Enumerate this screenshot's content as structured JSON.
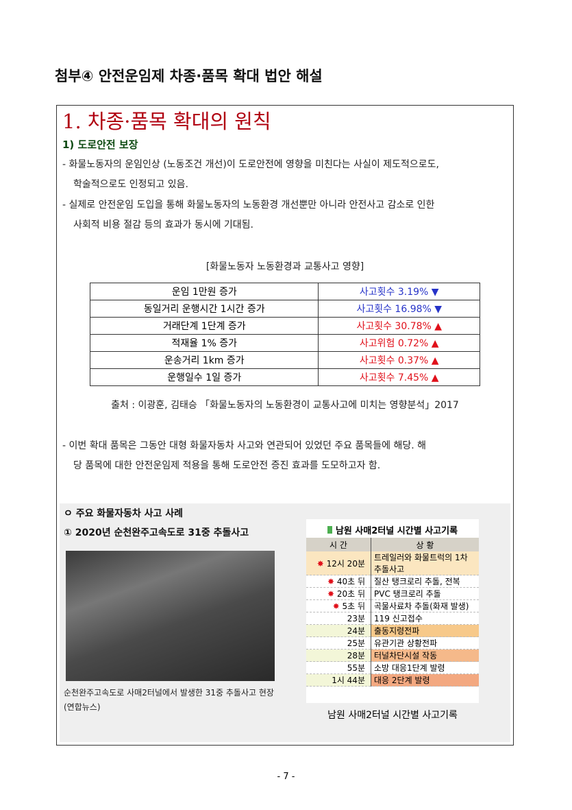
{
  "doc_title": "첨부④ 안전운임제 차종·품목 확대 법안 해설",
  "section_title": "1. 차종·품목 확대의 원칙",
  "subsection_title": "1) 도로안전 보장",
  "paragraphs": [
    {
      "line1": "- 화물노동자의 운임인상 (노동조건 개선)이 도로안전에 영향을 미친다는 사실이 제도적으로도,",
      "line2": "학술적으로도 인정되고 있음."
    },
    {
      "line1": "- 실제로 안전운임 도입을 통해 화물노동자의 노동환경 개선뿐만 아니라 안전사고 감소로 인한",
      "line2": "사회적 비용 절감 등의 효과가 동시에 기대됨."
    },
    {
      "line1": "- 이번 확대 품목은 그동안 대형 화물자동차 사고와 연관되어 있었던 주요 품목들에 해당. 해",
      "line2": "당 품목에 대한 안전운임제 적용을 통해 도로안전 증진 효과를 도모하고자 함."
    }
  ],
  "table_caption": "[화물노동자 노동환경과 교통사고 영향]",
  "effects": [
    {
      "factor": "운임 1만원 증가",
      "effect": "사고횟수 3.19% ▼",
      "direction": "down"
    },
    {
      "factor": "동일거리 운행시간 1시간 증가",
      "effect": "사고횟수 16.98% ▼",
      "direction": "down"
    },
    {
      "factor": "거래단계 1단계 증가",
      "effect": "사고횟수 30.78% ▲",
      "direction": "up"
    },
    {
      "factor": "적재율 1% 증가",
      "effect": "사고위험 0.72% ▲",
      "direction": "up"
    },
    {
      "factor": "운송거리 1km 증가",
      "effect": "사고횟수 0.37% ▲",
      "direction": "up"
    },
    {
      "factor": "운행일수 1일 증가",
      "effect": "사고횟수 7.45% ▲",
      "direction": "up"
    }
  ],
  "colors": {
    "down": "#2633c8",
    "up": "#e0101a",
    "title_red": "#b00010",
    "sub_green": "#0d4a12"
  },
  "source": "출처 : 이광훈, 김태승 「화물노동자의 노동환경이 교통사고에 미치는 영향분석」2017",
  "cases": {
    "heading": "ㅇ 주요 화물자동차 사고 사례",
    "case1": "① 2020년 순천완주고속도로 31중 추돌사고",
    "photo_caption": "순천완주고속도로 사매2터널에서 발생한 31중 추돌사고 현장 (연합뉴스)",
    "timeline_title": "남원 사매2터널 시간별 사고기록",
    "timeline_headers": [
      "시 간",
      "상 황"
    ],
    "timeline": [
      {
        "time": "12시 20분",
        "event": "트레일러와 화물트럭의 1차 추돌사고",
        "icon": "burst",
        "bg": "#fbe6c0"
      },
      {
        "time": "40초 뒤",
        "event": "질산 탱크로리 추돌, 전복",
        "icon": "burst",
        "bg": "#ffffff"
      },
      {
        "time": "20초 뒤",
        "event": "PVC 탱크로리 추돌",
        "icon": "burst",
        "bg": "#ffffff"
      },
      {
        "time": "5초 뒤",
        "event": "곡물사료차 추돌(화재 발생)",
        "icon": "burst",
        "bg": "#ffffff"
      },
      {
        "time": "23분",
        "event": "119 신고접수",
        "icon": "",
        "bg": "#ffffff"
      },
      {
        "time": "24분",
        "event": "출동지령전파",
        "icon": "",
        "bg": "#f7c98a"
      },
      {
        "time": "25분",
        "event": "유관기관 상황전파",
        "icon": "",
        "bg": "#ffffff"
      },
      {
        "time": "28분",
        "event": "터널차단시설 작동",
        "icon": "",
        "bg": "#f5b98a"
      },
      {
        "time": "55분",
        "event": "소방 대응1단계 발령",
        "icon": "",
        "bg": "#ffffff"
      },
      {
        "time": "1시 44분",
        "event": "대응 2단계 발령",
        "icon": "",
        "bg": "#f3a880"
      }
    ],
    "timeline_caption": "남원 사매2터널 시간별 사고기록"
  },
  "page_number": "- 7 -"
}
